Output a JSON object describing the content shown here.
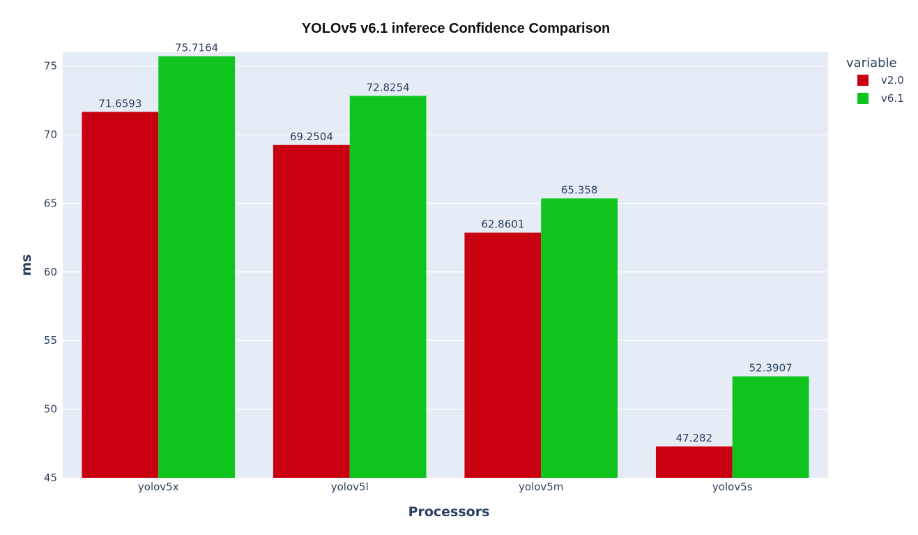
{
  "chart_data": {
    "type": "bar",
    "title": "YOLOv5 v6.1 inferece Confidence Comparison",
    "xlabel": "Processors",
    "ylabel": "ms",
    "categories": [
      "yolov5x",
      "yolov5l",
      "yolov5m",
      "yolov5s"
    ],
    "series": [
      {
        "name": "v2.0",
        "color": "#c90010",
        "values": [
          71.6593,
          69.2504,
          62.8601,
          47.282
        ],
        "labels": [
          "71.6593",
          "69.2504",
          "62.8601",
          "47.282"
        ]
      },
      {
        "name": "v6.1",
        "color": "#0fc51d",
        "values": [
          75.7164,
          72.8254,
          65.358,
          52.3907
        ],
        "labels": [
          "75.7164",
          "72.8254",
          "65.358",
          "52.3907"
        ]
      }
    ],
    "ylim": [
      45,
      76
    ],
    "yticks": [
      45,
      50,
      55,
      60,
      65,
      70,
      75
    ],
    "legend_title": "variable",
    "legend_position": "top-right",
    "grid": true,
    "plot_background": "#e5ecf6"
  }
}
